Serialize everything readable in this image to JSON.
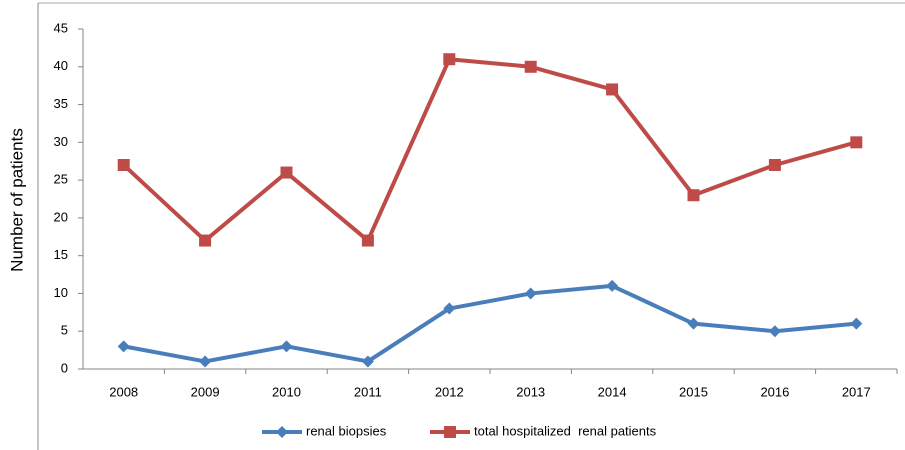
{
  "chart_data": {
    "type": "line",
    "y_label": "Number of patients",
    "categories": [
      "2008",
      "2009",
      "2010",
      "2011",
      "2012",
      "2013",
      "2014",
      "2015",
      "2016",
      "2017"
    ],
    "series": [
      {
        "name": "renal biopsies",
        "color": "#4a7ebb",
        "marker": "diamond",
        "values": [
          3,
          1,
          3,
          1,
          8,
          10,
          11,
          6,
          5,
          6
        ]
      },
      {
        "name": "total hospitalized  renal patients",
        "color": "#be4b48",
        "marker": "square",
        "values": [
          27,
          17,
          26,
          17,
          41,
          40,
          37,
          23,
          27,
          30
        ]
      }
    ],
    "ylim": [
      0,
      45
    ],
    "yticks": [
      0,
      5,
      10,
      15,
      20,
      25,
      30,
      35,
      40,
      45
    ],
    "grid": false,
    "legend": "bottom"
  }
}
